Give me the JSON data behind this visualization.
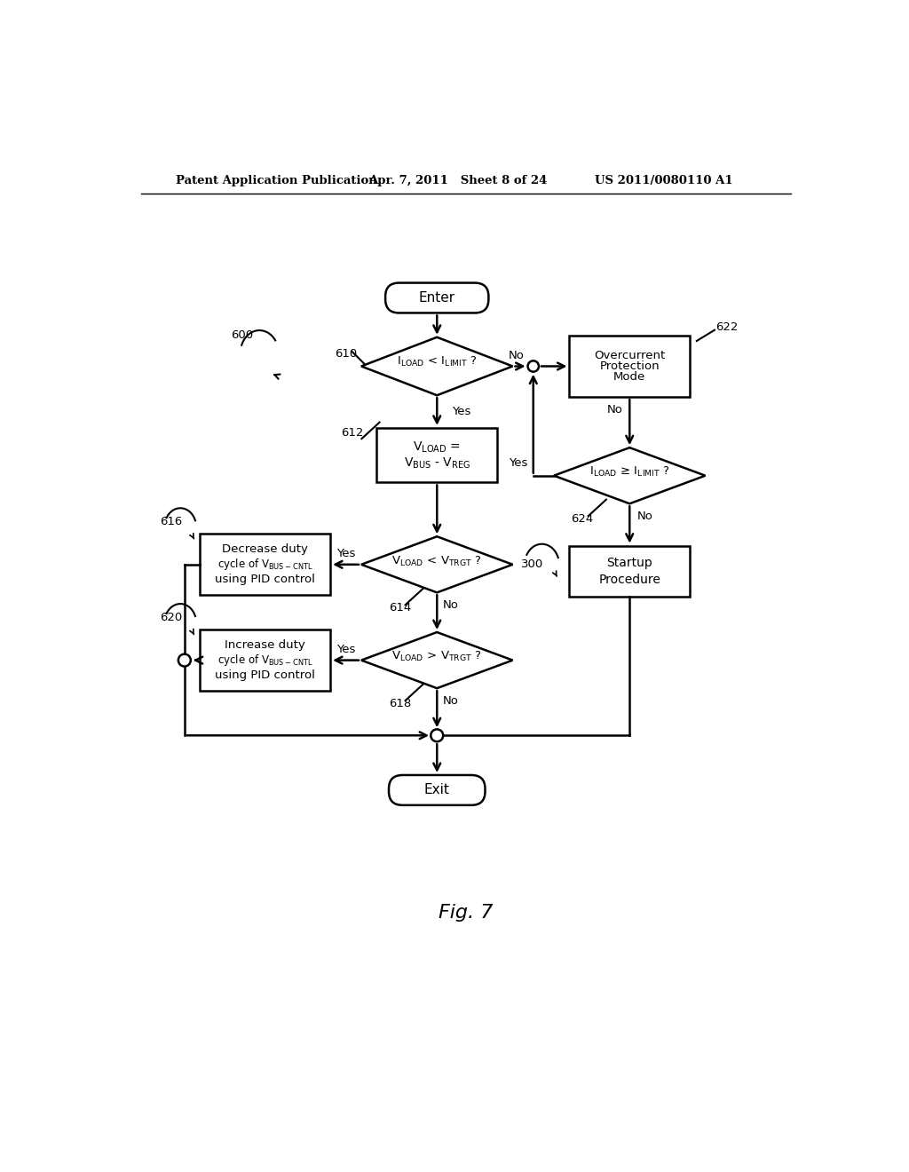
{
  "bg_color": "#ffffff",
  "header_left": "Patent Application Publication",
  "header_mid": "Apr. 7, 2011   Sheet 8 of 24",
  "header_right": "US 2011/0080110 A1",
  "fig_label": "Fig. 7",
  "label_600": "600",
  "label_610": "610",
  "label_612": "612",
  "label_614": "614",
  "label_616": "616",
  "label_618": "618",
  "label_620": "620",
  "label_622": "622",
  "label_624": "624",
  "label_300": "300"
}
